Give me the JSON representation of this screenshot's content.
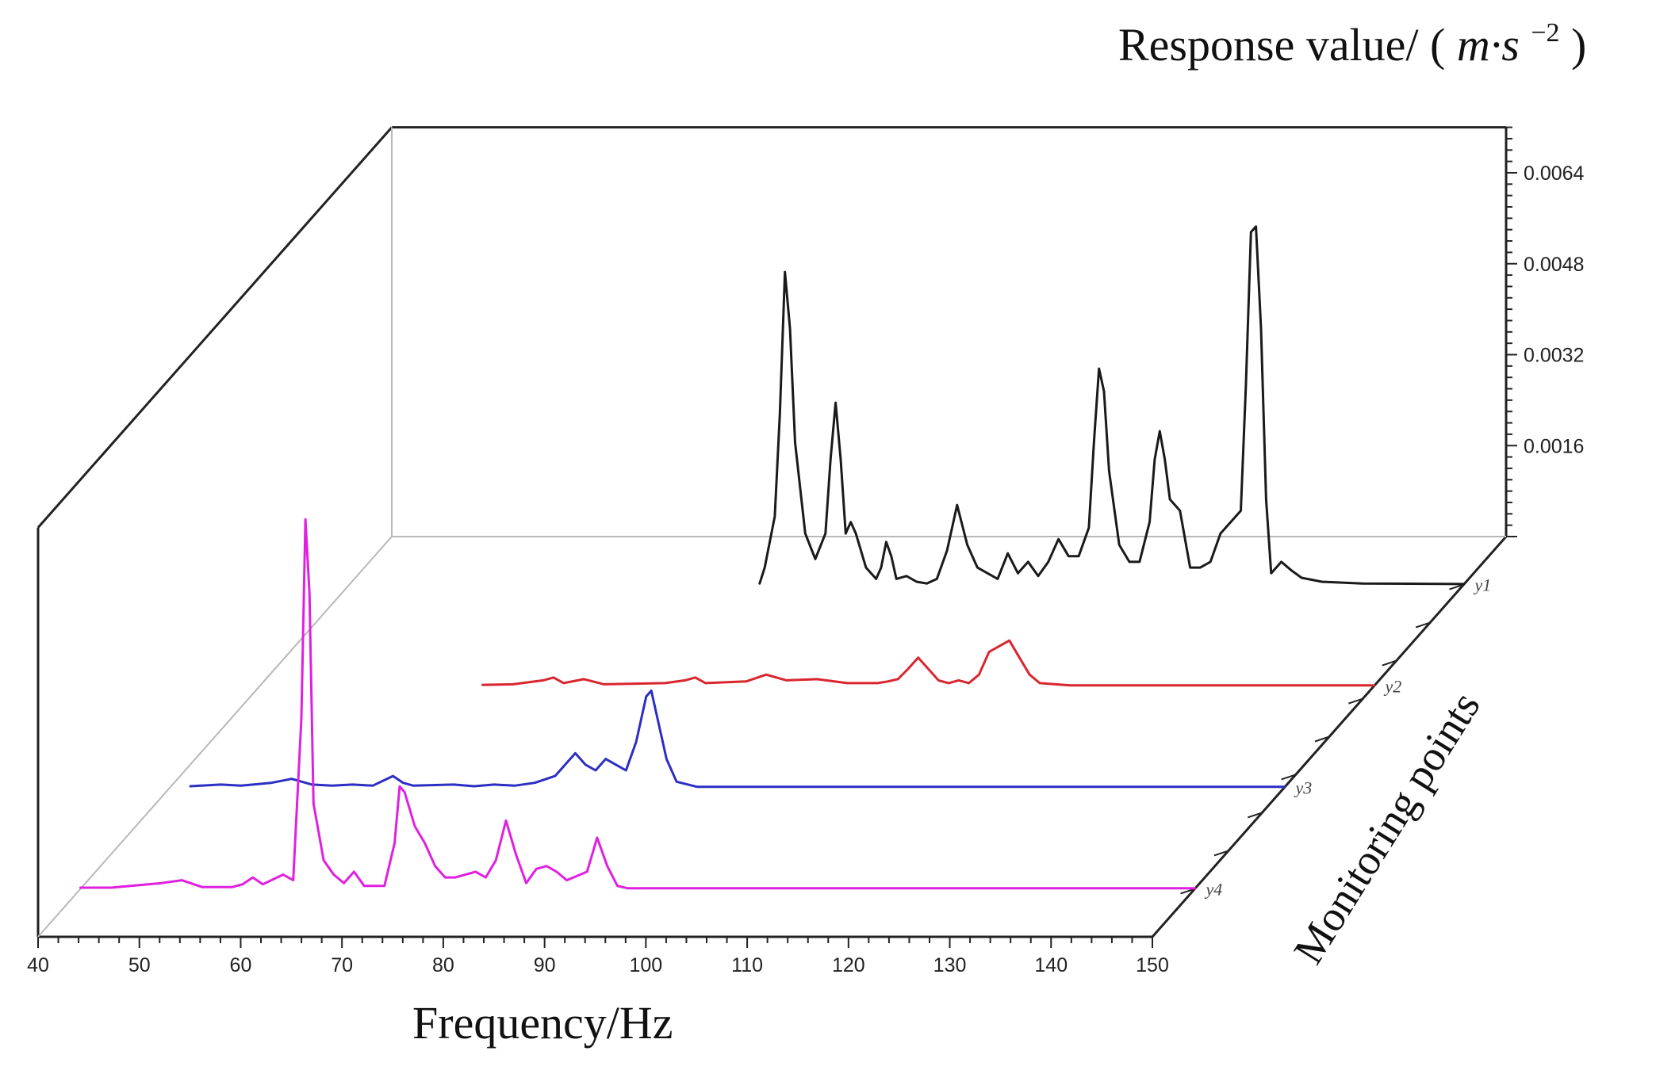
{
  "chart_data": {
    "type": "line",
    "subtype": "3d-waterfall",
    "xlabel": "Frequency/Hz",
    "ylabel": "Monitoring points",
    "zlabel": "Response value/ (m·s⁻²)",
    "zlabel_parts": {
      "text": "Response value/ (",
      "unit": "m·s",
      "exp": "−2",
      "close": ")"
    },
    "xlim": [
      40,
      150
    ],
    "x_ticks": [
      40,
      50,
      60,
      70,
      80,
      90,
      100,
      110,
      120,
      130,
      140,
      150
    ],
    "z_ticks": [
      0.0016,
      0.0032,
      0.0048,
      0.0064
    ],
    "z_tick_labels": [
      "0.0016",
      "0.0032",
      "0.0048",
      "0.0064"
    ],
    "zlim": [
      0,
      0.0072
    ],
    "grid": false,
    "series": [
      {
        "name": "y1",
        "color": "#1a1a1a",
        "points": [
          [
            80.5,
            2e-05
          ],
          [
            81,
            0.0003
          ],
          [
            82,
            0.0012
          ],
          [
            82.5,
            0.003
          ],
          [
            83,
            0.0055
          ],
          [
            83.5,
            0.0045
          ],
          [
            84,
            0.0025
          ],
          [
            85,
            0.0009
          ],
          [
            86,
            0.00045
          ],
          [
            87,
            0.0009
          ],
          [
            87.5,
            0.0022
          ],
          [
            88,
            0.0032
          ],
          [
            88.5,
            0.0022
          ],
          [
            89,
            0.0009
          ],
          [
            89.5,
            0.0011
          ],
          [
            90,
            0.0009
          ],
          [
            91,
            0.0003
          ],
          [
            92,
            0.0001
          ],
          [
            92.5,
            0.0003
          ],
          [
            93,
            0.00075
          ],
          [
            93.5,
            0.0005
          ],
          [
            94,
            0.0001
          ],
          [
            95,
            0.00015
          ],
          [
            96,
            5e-05
          ],
          [
            97,
            2e-05
          ],
          [
            98,
            0.0001
          ],
          [
            99,
            0.0006
          ],
          [
            100,
            0.0014
          ],
          [
            101,
            0.0007
          ],
          [
            102,
            0.0003
          ],
          [
            103,
            0.0002
          ],
          [
            104,
            0.0001
          ],
          [
            105,
            0.00055
          ],
          [
            106,
            0.0002
          ],
          [
            107,
            0.0004
          ],
          [
            108,
            0.00015
          ],
          [
            109,
            0.0004
          ],
          [
            110,
            0.0008
          ],
          [
            111,
            0.0005
          ],
          [
            112,
            0.0005
          ],
          [
            113,
            0.001
          ],
          [
            113.5,
            0.0025
          ],
          [
            114,
            0.0038
          ],
          [
            114.5,
            0.0034
          ],
          [
            115,
            0.002
          ],
          [
            116,
            0.0007
          ],
          [
            117,
            0.0004
          ],
          [
            118,
            0.0004
          ],
          [
            119,
            0.0011
          ],
          [
            119.5,
            0.0022
          ],
          [
            120,
            0.0027
          ],
          [
            120.5,
            0.0022
          ],
          [
            121,
            0.0015
          ],
          [
            122,
            0.0013
          ],
          [
            122.5,
            0.0008
          ],
          [
            123,
            0.0003
          ],
          [
            124,
            0.0003
          ],
          [
            125,
            0.0004
          ],
          [
            126,
            0.0009
          ],
          [
            127,
            0.0011
          ],
          [
            128,
            0.0013
          ],
          [
            128.5,
            0.0035
          ],
          [
            129,
            0.0062
          ],
          [
            129.5,
            0.0063
          ],
          [
            130,
            0.0045
          ],
          [
            130.5,
            0.0015
          ],
          [
            131,
            0.0002
          ],
          [
            132,
            0.0004
          ],
          [
            133,
            0.00025
          ],
          [
            134,
            0.00012
          ],
          [
            136,
            5e-05
          ],
          [
            140,
            2e-05
          ],
          [
            150,
            1e-05
          ]
        ]
      },
      {
        "name": "y2",
        "color": "#d9262e",
        "points": [
          [
            62,
            2e-05
          ],
          [
            65,
            3e-05
          ],
          [
            68,
            0.0001
          ],
          [
            69,
            0.00015
          ],
          [
            70,
            5e-05
          ],
          [
            72,
            0.00012
          ],
          [
            74,
            3e-05
          ],
          [
            80,
            5e-05
          ],
          [
            82,
            0.0001
          ],
          [
            83,
            0.00015
          ],
          [
            84,
            5e-05
          ],
          [
            88,
            8e-05
          ],
          [
            90,
            0.0002
          ],
          [
            92,
            0.0001
          ],
          [
            95,
            0.00012
          ],
          [
            98,
            5e-05
          ],
          [
            101,
            5e-05
          ],
          [
            102,
            8e-05
          ],
          [
            103,
            0.00012
          ],
          [
            104,
            0.0003
          ],
          [
            105,
            0.0005
          ],
          [
            106,
            0.0003
          ],
          [
            107,
            0.0001
          ],
          [
            108,
            5e-05
          ],
          [
            109,
            0.0001
          ],
          [
            110,
            5e-05
          ],
          [
            111,
            0.0002
          ],
          [
            112,
            0.0006
          ],
          [
            113,
            0.0007
          ],
          [
            114,
            0.0008
          ],
          [
            115,
            0.0005
          ],
          [
            116,
            0.0002
          ],
          [
            117,
            5e-05
          ],
          [
            120,
            1e-05
          ],
          [
            125,
            1e-05
          ]
        ]
      },
      {
        "name": "y3",
        "color": "#2c2fc2",
        "points": [
          [
            42,
            2e-05
          ],
          [
            45,
            5e-05
          ],
          [
            47,
            3e-05
          ],
          [
            50,
            8e-05
          ],
          [
            52,
            0.00015
          ],
          [
            54,
            5e-05
          ],
          [
            56,
            3e-05
          ],
          [
            58,
            5e-05
          ],
          [
            60,
            3e-05
          ],
          [
            62,
            0.0002
          ],
          [
            63,
            8e-05
          ],
          [
            64,
            3e-05
          ],
          [
            68,
            5e-05
          ],
          [
            70,
            2e-05
          ],
          [
            72,
            5e-05
          ],
          [
            74,
            3e-05
          ],
          [
            76,
            8e-05
          ],
          [
            78,
            0.0002
          ],
          [
            79,
            0.0004
          ],
          [
            80,
            0.0006
          ],
          [
            81,
            0.0004
          ],
          [
            82,
            0.0003
          ],
          [
            83,
            0.0005
          ],
          [
            84,
            0.0004
          ],
          [
            85,
            0.0003
          ],
          [
            86,
            0.0008
          ],
          [
            87,
            0.0016
          ],
          [
            87.5,
            0.0017
          ],
          [
            88,
            0.0013
          ],
          [
            89,
            0.0005
          ],
          [
            90,
            0.0001
          ],
          [
            92,
            1e-05
          ],
          [
            100,
            1e-05
          ],
          [
            110,
            1e-05
          ]
        ]
      },
      {
        "name": "y4",
        "color": "#e020e0",
        "points": [
          [
            40,
            2e-05
          ],
          [
            43,
            2e-05
          ],
          [
            48,
            0.0001
          ],
          [
            50,
            0.00015
          ],
          [
            52,
            3e-05
          ],
          [
            55,
            3e-05
          ],
          [
            56,
            8e-05
          ],
          [
            57,
            0.0002
          ],
          [
            58,
            8e-05
          ],
          [
            60,
            0.00025
          ],
          [
            61,
            0.00015
          ],
          [
            61.8,
            0.003
          ],
          [
            62.2,
            0.0065
          ],
          [
            62.6,
            0.0052
          ],
          [
            63,
            0.0015
          ],
          [
            64,
            0.0005
          ],
          [
            65,
            0.00025
          ],
          [
            66,
            0.0001
          ],
          [
            67,
            0.0003
          ],
          [
            68,
            5e-05
          ],
          [
            70,
            5e-05
          ],
          [
            71,
            0.0008
          ],
          [
            71.5,
            0.0018
          ],
          [
            72,
            0.0017
          ],
          [
            73,
            0.0011
          ],
          [
            74,
            0.0008
          ],
          [
            75,
            0.0004
          ],
          [
            76,
            0.0002
          ],
          [
            77,
            0.0002
          ],
          [
            78,
            0.00025
          ],
          [
            79,
            0.0003
          ],
          [
            80,
            0.0002
          ],
          [
            81,
            0.0005
          ],
          [
            82,
            0.0012
          ],
          [
            83,
            0.0006
          ],
          [
            84,
            0.0001
          ],
          [
            85,
            0.00035
          ],
          [
            86,
            0.0004
          ],
          [
            87,
            0.0003
          ],
          [
            88,
            0.00015
          ],
          [
            90,
            0.0003
          ],
          [
            91,
            0.0009
          ],
          [
            92,
            0.0004
          ],
          [
            93,
            5e-05
          ],
          [
            94,
            1e-05
          ],
          [
            100,
            1e-05
          ],
          [
            115,
            1e-05
          ]
        ]
      }
    ]
  }
}
